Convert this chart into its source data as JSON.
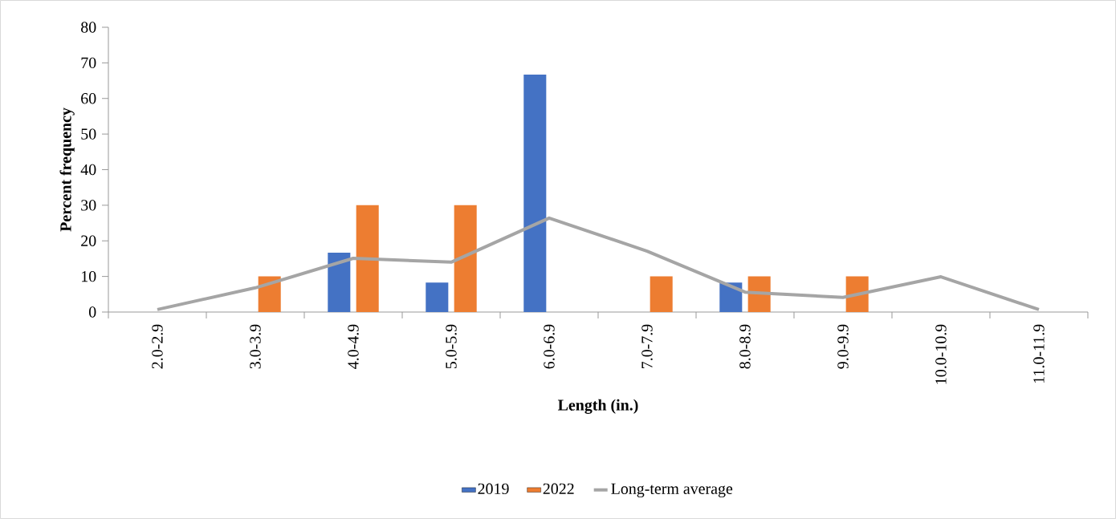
{
  "chart_data": {
    "type": "bar",
    "xlabel": "Length (in.)",
    "ylabel": "Percent frequency",
    "categories": [
      "2.0-2.9",
      "3.0-3.9",
      "4.0-4.9",
      "5.0-5.9",
      "6.0-6.9",
      "7.0-7.9",
      "8.0-8.9",
      "9.0-9.9",
      "10.0-10.9",
      "11.0-11.9"
    ],
    "series": [
      {
        "name": "2019",
        "color": "#4472c4",
        "values": [
          0,
          0,
          16.7,
          8.3,
          66.7,
          0,
          8.3,
          0,
          0,
          0
        ]
      },
      {
        "name": "2022",
        "color": "#ed7d31",
        "values": [
          0,
          10,
          30,
          30,
          0,
          10,
          10,
          10,
          0,
          0
        ]
      },
      {
        "name": "Long-term average",
        "type": "line",
        "color": "#a5a5a5",
        "values": [
          0.7,
          6.8,
          15.1,
          14,
          26.4,
          17.1,
          5.6,
          4.1,
          9.9,
          0.7
        ]
      }
    ],
    "ylim": [
      0,
      80
    ],
    "yticks": [
      0,
      10,
      20,
      30,
      40,
      50,
      60,
      70,
      80
    ],
    "legend": "bottom"
  }
}
